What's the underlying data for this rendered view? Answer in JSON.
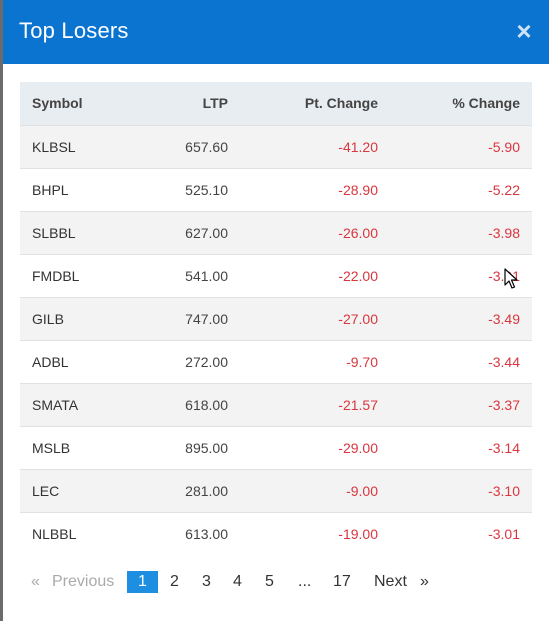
{
  "modal": {
    "title": "Top Losers",
    "close_symbol": "×"
  },
  "table": {
    "headers": {
      "symbol": "Symbol",
      "ltp": "LTP",
      "pt_change": "Pt. Change",
      "pct_change": "% Change"
    },
    "rows": [
      {
        "symbol": "KLBSL",
        "ltp": "657.60",
        "pt": "-41.20",
        "pct": "-5.90"
      },
      {
        "symbol": "BHPL",
        "ltp": "525.10",
        "pt": "-28.90",
        "pct": "-5.22"
      },
      {
        "symbol": "SLBBL",
        "ltp": "627.00",
        "pt": "-26.00",
        "pct": "-3.98"
      },
      {
        "symbol": "FMDBL",
        "ltp": "541.00",
        "pt": "-22.00",
        "pct": "-3.91"
      },
      {
        "symbol": "GILB",
        "ltp": "747.00",
        "pt": "-27.00",
        "pct": "-3.49"
      },
      {
        "symbol": "ADBL",
        "ltp": "272.00",
        "pt": "-9.70",
        "pct": "-3.44"
      },
      {
        "symbol": "SMATA",
        "ltp": "618.00",
        "pt": "-21.57",
        "pct": "-3.37"
      },
      {
        "symbol": "MSLB",
        "ltp": "895.00",
        "pt": "-29.00",
        "pct": "-3.14"
      },
      {
        "symbol": "LEC",
        "ltp": "281.00",
        "pt": "-9.00",
        "pct": "-3.10"
      },
      {
        "symbol": "NLBBL",
        "ltp": "613.00",
        "pt": "-19.00",
        "pct": "-3.01"
      }
    ]
  },
  "pagination": {
    "prev_arrow": "«",
    "prev_label": "Previous",
    "pages": [
      "1",
      "2",
      "3",
      "4",
      "5"
    ],
    "ellipsis": "...",
    "last_page": "17",
    "next_label": "Next",
    "next_arrow": "»",
    "current": "1"
  },
  "colors": {
    "header_bg": "#0b74d1",
    "negative": "#d9363e",
    "active_page": "#1e8fe0"
  }
}
